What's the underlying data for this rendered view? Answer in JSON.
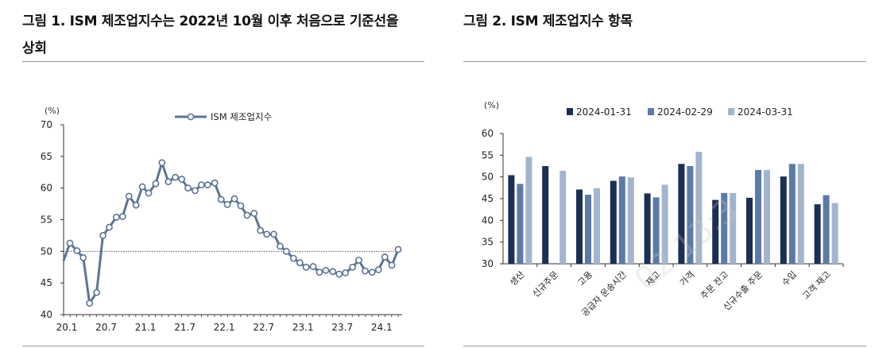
{
  "left": {
    "title_line1": "그림 1. ISM 제조업지수는 2022년 10월 이후 처음으로 기준선을",
    "title_line2": "상회"
  },
  "right": {
    "title": "그림 2. ISM 제조업지수 항목"
  },
  "watermark": "02 13:3",
  "colors": {
    "line": "#5d7494",
    "bar1": "#1b2f55",
    "bar2": "#5b7ba6",
    "bar3": "#a3b5cd",
    "axis": "#333333",
    "ref_line": "#555555"
  },
  "chart_data": [
    {
      "type": "line",
      "unit": "(%)",
      "legend": "ISM 제조업지수",
      "legend_position": "top-center",
      "grid": false,
      "ylim": [
        40,
        70
      ],
      "yticks": [
        40,
        45,
        50,
        55,
        60,
        65,
        70
      ],
      "reference_line": 50,
      "xlim": [
        2020.0,
        2024.3
      ],
      "xtick_labels": [
        "20.1",
        "20.7",
        "21.1",
        "21.7",
        "22.1",
        "22.7",
        "23.1",
        "23.7",
        "24.1"
      ],
      "series": [
        {
          "name": "ISM 제조업지수",
          "x": [
            2020.08,
            2020.17,
            2020.25,
            2020.33,
            2020.42,
            2020.5,
            2020.58,
            2020.67,
            2020.75,
            2020.83,
            2020.92,
            2021.0,
            2021.08,
            2021.17,
            2021.25,
            2021.33,
            2021.42,
            2021.5,
            2021.58,
            2021.67,
            2021.75,
            2021.83,
            2021.92,
            2022.0,
            2022.08,
            2022.17,
            2022.25,
            2022.33,
            2022.42,
            2022.5,
            2022.58,
            2022.67,
            2022.75,
            2022.83,
            2022.92,
            2023.0,
            2023.08,
            2023.17,
            2023.25,
            2023.33,
            2023.42,
            2023.5,
            2023.58,
            2023.67,
            2023.75,
            2023.83,
            2023.92,
            2024.0,
            2024.08,
            2024.17
          ],
          "values": [
            51.3,
            50.1,
            49.0,
            41.8,
            43.5,
            52.5,
            53.8,
            55.4,
            55.5,
            58.7,
            57.3,
            60.2,
            59.2,
            60.7,
            64.0,
            61.0,
            61.7,
            61.4,
            60.0,
            59.6,
            60.5,
            60.5,
            60.8,
            58.2,
            57.4,
            58.3,
            57.2,
            55.7,
            56.0,
            53.3,
            52.7,
            52.7,
            50.8,
            50.0,
            48.9,
            48.2,
            47.5,
            47.6,
            46.7,
            47.0,
            46.8,
            46.4,
            46.6,
            47.5,
            48.6,
            46.9,
            46.7,
            47.1,
            49.1,
            47.8
          ]
        }
      ],
      "end_point": {
        "x": 2024.25,
        "value": 50.3
      }
    },
    {
      "type": "bar",
      "unit": "(%)",
      "legend_position": "top",
      "grid": false,
      "ylim": [
        30,
        60
      ],
      "yticks": [
        30,
        35,
        40,
        45,
        50,
        55,
        60
      ],
      "categories": [
        "생산",
        "신규주문",
        "고용",
        "공급자 운송시간",
        "재고",
        "가격",
        "주문 잔고",
        "신규수출 주문",
        "수입",
        "고객 재고"
      ],
      "series": [
        {
          "name": "2024-01-31",
          "values": [
            50.4,
            52.5,
            47.1,
            49.1,
            46.2,
            53.0,
            44.7,
            45.2,
            50.1,
            43.7
          ]
        },
        {
          "name": "2024-02-29",
          "values": [
            48.4,
            30.0,
            45.9,
            50.1,
            45.3,
            52.5,
            46.3,
            51.6,
            53.0,
            45.8
          ]
        },
        {
          "name": "2024-03-31",
          "values": [
            54.6,
            51.4,
            47.4,
            49.9,
            48.2,
            55.8,
            46.3,
            51.6,
            53.0,
            44.0
          ]
        }
      ]
    }
  ]
}
